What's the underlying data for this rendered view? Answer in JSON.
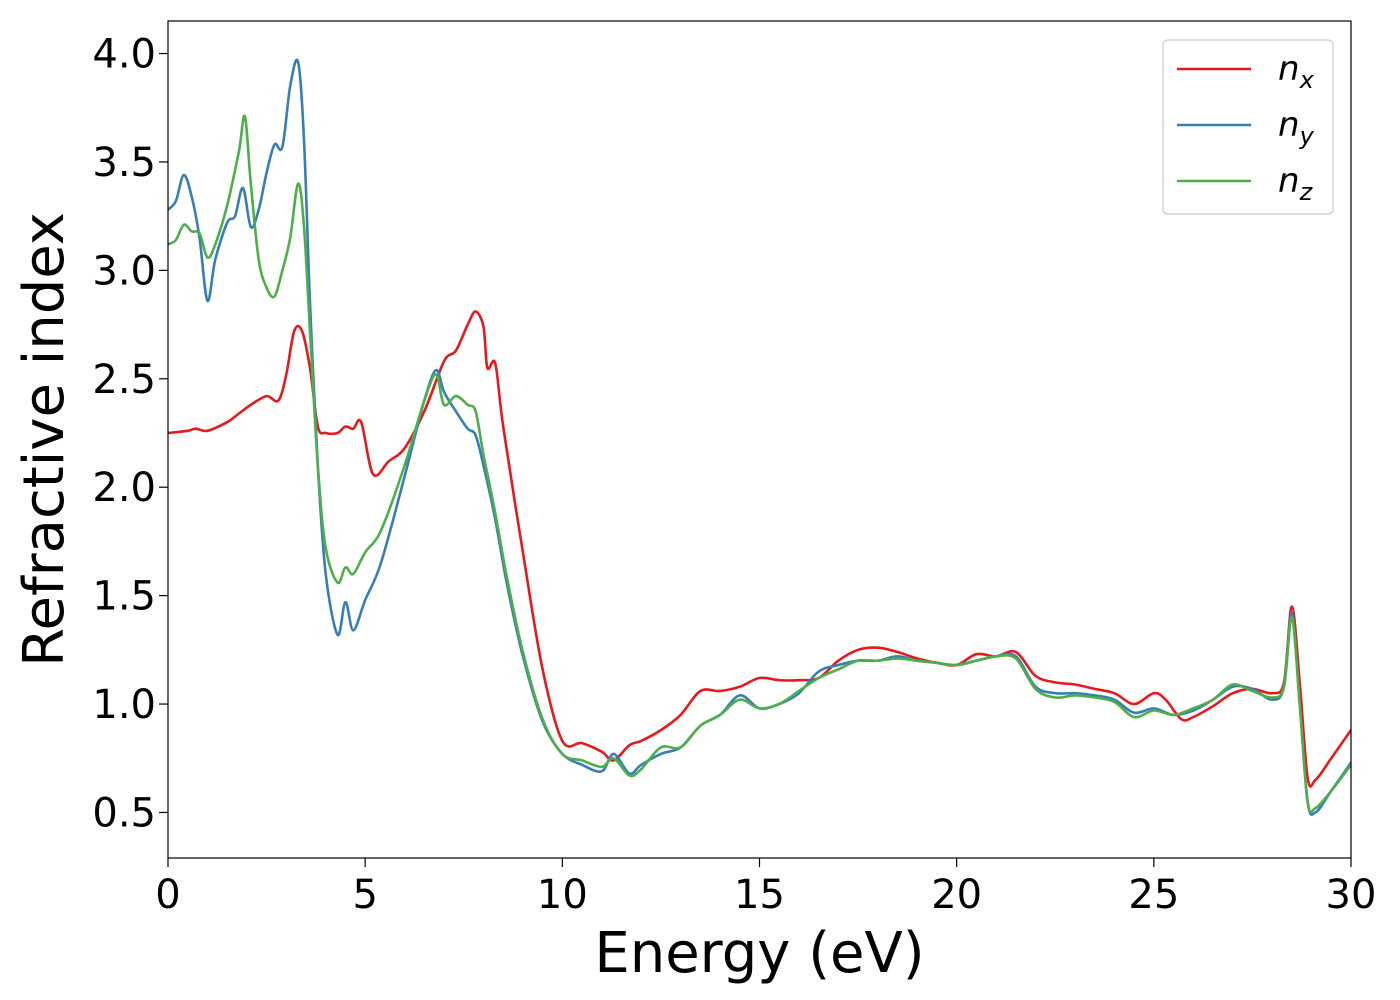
{
  "chart_data": {
    "type": "line",
    "xlabel": "Energy (eV)",
    "ylabel": "Refractive index",
    "xlim": [
      0,
      30
    ],
    "ylim": [
      0.29,
      4.15
    ],
    "xticks": [
      0,
      5,
      10,
      15,
      20,
      25,
      30
    ],
    "yticks": [
      0.5,
      1.0,
      1.5,
      2.0,
      2.5,
      3.0,
      3.5,
      4.0
    ],
    "grid": false,
    "legend_position": "top-right",
    "series": [
      {
        "name": "n_x",
        "name_base": "n",
        "name_sub": "x",
        "color": "#e41a1c",
        "x": [
          0,
          0.5,
          0.7,
          1.0,
          1.5,
          1.8,
          2.1,
          2.5,
          2.8,
          3.0,
          3.2,
          3.4,
          3.6,
          3.8,
          4.0,
          4.3,
          4.5,
          4.7,
          4.9,
          5.2,
          5.6,
          6.0,
          6.5,
          7.0,
          7.3,
          7.6,
          7.8,
          8.0,
          8.1,
          8.3,
          8.5,
          9.0,
          9.5,
          10.0,
          10.5,
          11.0,
          11.3,
          11.7,
          12.0,
          12.5,
          13.0,
          13.5,
          14.0,
          14.5,
          15.0,
          15.5,
          16.0,
          16.5,
          17.0,
          17.5,
          18.0,
          18.5,
          19.0,
          19.5,
          20.0,
          20.5,
          21.0,
          21.5,
          22.0,
          22.5,
          23.0,
          23.5,
          24.0,
          24.5,
          25.0,
          25.3,
          25.7,
          26.0,
          26.5,
          27.0,
          27.5,
          28.0,
          28.3,
          28.5,
          28.7,
          28.9,
          29.1,
          29.5,
          30.0
        ],
        "y": [
          2.25,
          2.26,
          2.27,
          2.26,
          2.3,
          2.34,
          2.38,
          2.42,
          2.4,
          2.52,
          2.72,
          2.72,
          2.55,
          2.28,
          2.25,
          2.25,
          2.28,
          2.27,
          2.3,
          2.06,
          2.12,
          2.18,
          2.35,
          2.58,
          2.63,
          2.75,
          2.81,
          2.74,
          2.55,
          2.57,
          2.28,
          1.7,
          1.16,
          0.83,
          0.82,
          0.78,
          0.74,
          0.81,
          0.83,
          0.88,
          0.95,
          1.06,
          1.06,
          1.08,
          1.12,
          1.11,
          1.11,
          1.12,
          1.2,
          1.25,
          1.26,
          1.24,
          1.21,
          1.19,
          1.18,
          1.23,
          1.22,
          1.24,
          1.13,
          1.1,
          1.09,
          1.07,
          1.05,
          1.0,
          1.05,
          1.02,
          0.93,
          0.94,
          0.99,
          1.05,
          1.07,
          1.05,
          1.1,
          1.45,
          1.1,
          0.66,
          0.65,
          0.75,
          0.88
        ]
      },
      {
        "name": "n_y",
        "name_base": "n",
        "name_sub": "y",
        "color": "#377eb8",
        "x": [
          0,
          0.2,
          0.4,
          0.6,
          0.8,
          1.0,
          1.2,
          1.5,
          1.7,
          1.9,
          2.1,
          2.3,
          2.5,
          2.7,
          2.9,
          3.1,
          3.3,
          3.45,
          3.6,
          3.8,
          4.0,
          4.3,
          4.5,
          4.7,
          5.0,
          5.4,
          6.0,
          6.5,
          6.8,
          7.0,
          7.3,
          7.6,
          7.8,
          8.0,
          8.3,
          8.6,
          9.0,
          9.5,
          10.0,
          10.5,
          11.0,
          11.3,
          11.7,
          12.0,
          12.5,
          13.0,
          13.5,
          14.0,
          14.5,
          15.0,
          15.5,
          16.0,
          16.5,
          17.0,
          17.5,
          18.0,
          18.5,
          19.0,
          19.5,
          20.0,
          20.5,
          21.0,
          21.5,
          22.0,
          22.5,
          23.0,
          23.5,
          24.0,
          24.5,
          25.0,
          25.5,
          26.0,
          26.5,
          27.0,
          27.5,
          28.0,
          28.3,
          28.5,
          28.7,
          28.9,
          29.1,
          29.5,
          30.0
        ],
        "y": [
          3.28,
          3.32,
          3.44,
          3.34,
          3.15,
          2.86,
          3.05,
          3.22,
          3.25,
          3.38,
          3.2,
          3.28,
          3.45,
          3.58,
          3.57,
          3.85,
          3.96,
          3.6,
          2.85,
          2.1,
          1.6,
          1.32,
          1.47,
          1.34,
          1.48,
          1.65,
          2.05,
          2.4,
          2.54,
          2.44,
          2.35,
          2.27,
          2.24,
          2.1,
          1.85,
          1.55,
          1.22,
          0.92,
          0.77,
          0.72,
          0.69,
          0.77,
          0.68,
          0.72,
          0.77,
          0.8,
          0.9,
          0.95,
          1.04,
          0.98,
          1.0,
          1.05,
          1.15,
          1.18,
          1.2,
          1.2,
          1.22,
          1.2,
          1.19,
          1.18,
          1.2,
          1.22,
          1.22,
          1.08,
          1.05,
          1.05,
          1.04,
          1.02,
          0.96,
          0.98,
          0.95,
          0.97,
          1.02,
          1.08,
          1.07,
          1.02,
          1.08,
          1.42,
          1.0,
          0.55,
          0.5,
          0.6,
          0.73
        ]
      },
      {
        "name": "n_z",
        "name_base": "n",
        "name_sub": "z",
        "color": "#4daf4a",
        "x": [
          0,
          0.2,
          0.4,
          0.6,
          0.8,
          1.0,
          1.2,
          1.5,
          1.8,
          1.95,
          2.1,
          2.3,
          2.5,
          2.7,
          2.9,
          3.1,
          3.3,
          3.45,
          3.6,
          3.8,
          4.0,
          4.3,
          4.5,
          4.7,
          5.0,
          5.4,
          6.0,
          6.5,
          6.8,
          7.0,
          7.3,
          7.6,
          7.8,
          8.0,
          8.3,
          8.6,
          9.0,
          9.5,
          10.0,
          10.5,
          11.0,
          11.3,
          11.7,
          12.0,
          12.5,
          13.0,
          13.5,
          14.0,
          14.5,
          15.0,
          15.5,
          16.0,
          16.5,
          17.0,
          17.5,
          18.0,
          18.5,
          19.0,
          19.5,
          20.0,
          20.5,
          21.0,
          21.5,
          22.0,
          22.5,
          23.0,
          23.5,
          24.0,
          24.5,
          25.0,
          25.5,
          26.0,
          26.5,
          27.0,
          27.5,
          28.0,
          28.3,
          28.5,
          28.7,
          28.9,
          29.1,
          29.5,
          30.0
        ],
        "y": [
          3.12,
          3.14,
          3.21,
          3.18,
          3.17,
          3.06,
          3.12,
          3.3,
          3.55,
          3.71,
          3.4,
          3.05,
          2.92,
          2.88,
          3.0,
          3.15,
          3.4,
          3.2,
          2.72,
          2.1,
          1.72,
          1.56,
          1.63,
          1.6,
          1.7,
          1.8,
          2.1,
          2.4,
          2.52,
          2.38,
          2.42,
          2.38,
          2.35,
          2.15,
          1.88,
          1.58,
          1.24,
          0.93,
          0.77,
          0.74,
          0.71,
          0.75,
          0.67,
          0.7,
          0.8,
          0.8,
          0.9,
          0.95,
          1.02,
          0.98,
          1.0,
          1.06,
          1.12,
          1.16,
          1.2,
          1.2,
          1.21,
          1.2,
          1.19,
          1.18,
          1.2,
          1.22,
          1.21,
          1.07,
          1.03,
          1.04,
          1.03,
          1.01,
          0.94,
          0.97,
          0.95,
          0.98,
          1.02,
          1.09,
          1.06,
          1.03,
          1.08,
          1.4,
          1.0,
          0.55,
          0.52,
          0.6,
          0.72
        ]
      }
    ]
  }
}
